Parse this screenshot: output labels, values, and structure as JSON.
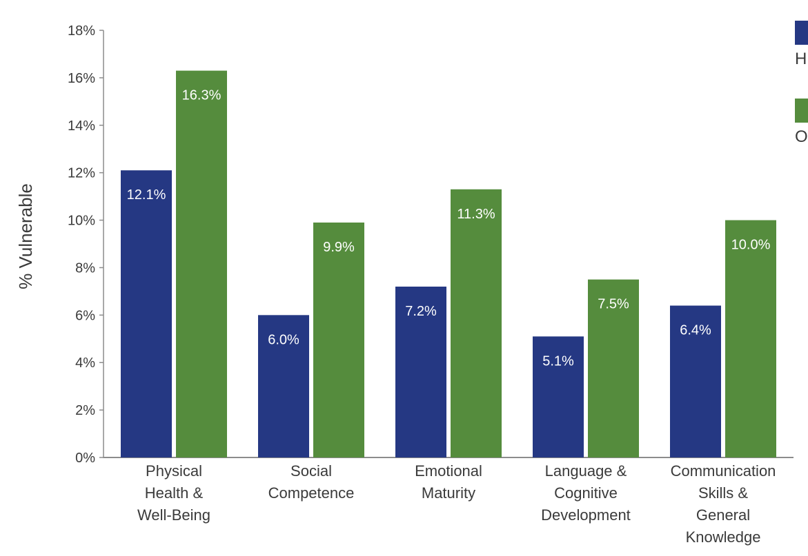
{
  "chart_data": {
    "type": "bar",
    "ylabel": "% Vulnerable",
    "xlabel": "",
    "ylim": [
      0,
      18
    ],
    "y_ticks": [
      "0%",
      "2%",
      "4%",
      "6%",
      "8%",
      "10%",
      "12%",
      "14%",
      "16%",
      "18%"
    ],
    "grid": false,
    "legend_placement": "top-right",
    "categories": [
      [
        "Physical",
        "Health &",
        "Well-Being"
      ],
      [
        "Social",
        "Competence"
      ],
      [
        "Emotional",
        "Maturity"
      ],
      [
        "Language &",
        "Cognitive",
        "Development"
      ],
      [
        "Communication",
        "Skills &",
        "General",
        "Knowledge"
      ]
    ],
    "series": [
      {
        "name": "H",
        "color": "#253883",
        "values": [
          12.1,
          6.0,
          7.2,
          5.1,
          6.4
        ],
        "labels": [
          "12.1%",
          "6.0%",
          "7.2%",
          "5.1%",
          "6.4%"
        ]
      },
      {
        "name": "O",
        "color": "#558c3d",
        "values": [
          16.3,
          9.9,
          11.3,
          7.5,
          10.0
        ],
        "labels": [
          "16.3%",
          "9.9%",
          "11.3%",
          "7.5%",
          "10.0%"
        ]
      }
    ]
  }
}
